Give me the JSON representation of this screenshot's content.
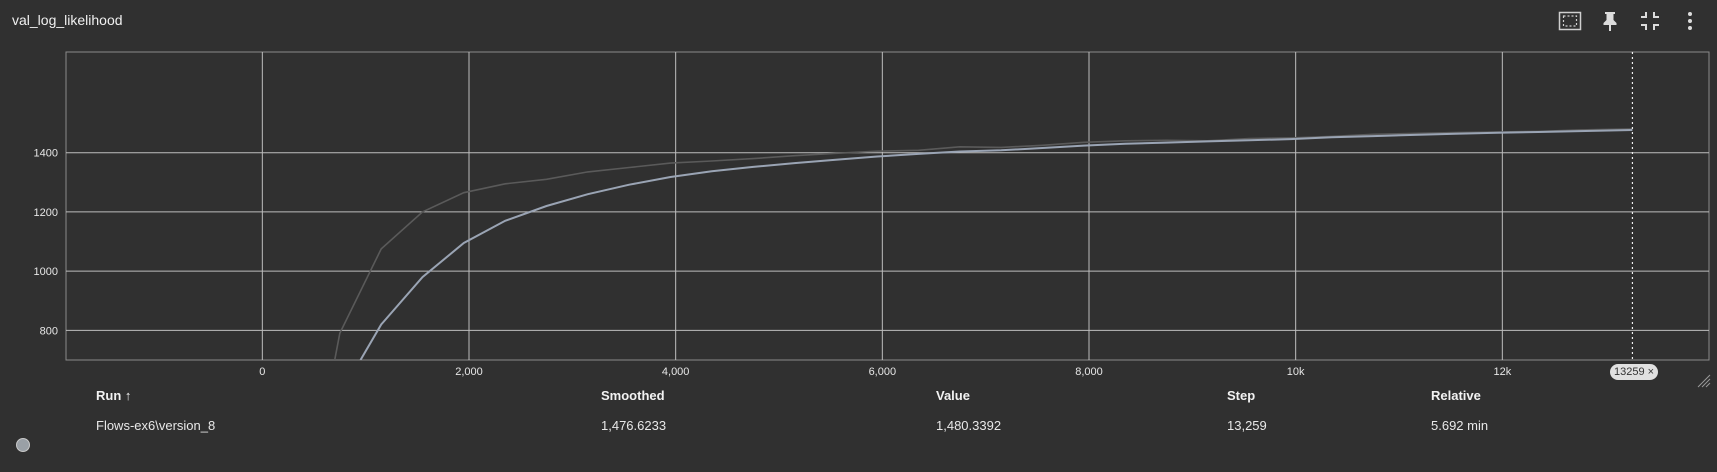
{
  "card": {
    "title": "val_log_likelihood"
  },
  "toolbar": {
    "icons": [
      "fit-domain-icon",
      "pin-icon",
      "collapse-icon",
      "more-vert-icon"
    ]
  },
  "chart_data": {
    "type": "line",
    "title": "val_log_likelihood",
    "xlim": [
      -1900,
      14000
    ],
    "ylim": [
      700,
      1740
    ],
    "x_ticks": [
      0,
      2000,
      4000,
      6000,
      8000,
      10000,
      12000
    ],
    "x_tick_labels": [
      "0",
      "2,000",
      "4,000",
      "6,000",
      "8,000",
      "10k",
      "12k"
    ],
    "y_ticks": [
      800,
      1000,
      1200,
      1400
    ],
    "y_tick_labels": [
      "800",
      "1000",
      "1200",
      "1400"
    ],
    "grid": true,
    "hover_step": 13259,
    "hover_step_label": "13259",
    "series": [
      {
        "role": "raw",
        "color": "#5a5a5a",
        "x": [
          700,
          750,
          1150,
          1550,
          1950,
          2350,
          2750,
          3150,
          3550,
          3950,
          4350,
          4750,
          5150,
          5550,
          5950,
          6350,
          6750,
          7150,
          7550,
          7950,
          8350,
          8750,
          9150,
          9550,
          9950,
          10350,
          10750,
          11150,
          11550,
          11950,
          12350,
          12750,
          13259
        ],
        "y": [
          700,
          790,
          1075,
          1200,
          1265,
          1295,
          1310,
          1335,
          1350,
          1365,
          1372,
          1380,
          1390,
          1398,
          1405,
          1408,
          1420,
          1418,
          1425,
          1435,
          1440,
          1442,
          1440,
          1448,
          1450,
          1455,
          1462,
          1465,
          1468,
          1470,
          1472,
          1477,
          1480.3392
        ]
      },
      {
        "role": "smoothed",
        "color": "#9aa4b4",
        "x": [
          950,
          1150,
          1550,
          1950,
          2350,
          2750,
          3150,
          3550,
          3950,
          4350,
          4750,
          5150,
          5550,
          5950,
          6350,
          6750,
          7150,
          7550,
          7950,
          8350,
          8750,
          9150,
          9550,
          9950,
          10350,
          10750,
          11150,
          11550,
          11950,
          12350,
          12750,
          13259
        ],
        "y": [
          700,
          820,
          980,
          1095,
          1170,
          1220,
          1260,
          1292,
          1318,
          1337,
          1352,
          1365,
          1376,
          1387,
          1396,
          1404,
          1408,
          1416,
          1424,
          1430,
          1434,
          1438,
          1442,
          1446,
          1452,
          1456,
          1460,
          1464,
          1467,
          1470,
          1473,
          1476.6233
        ]
      }
    ]
  },
  "legend": {
    "headers": {
      "run": "Run ↑",
      "smoothed": "Smoothed",
      "value": "Value",
      "step": "Step",
      "relative": "Relative"
    },
    "row": {
      "run": "Flows-ex6\\version_8",
      "smoothed": "1,476.6233",
      "value": "1,480.3392",
      "step": "13,259",
      "relative": "5.692 min",
      "color": "#9aa0a6"
    }
  }
}
